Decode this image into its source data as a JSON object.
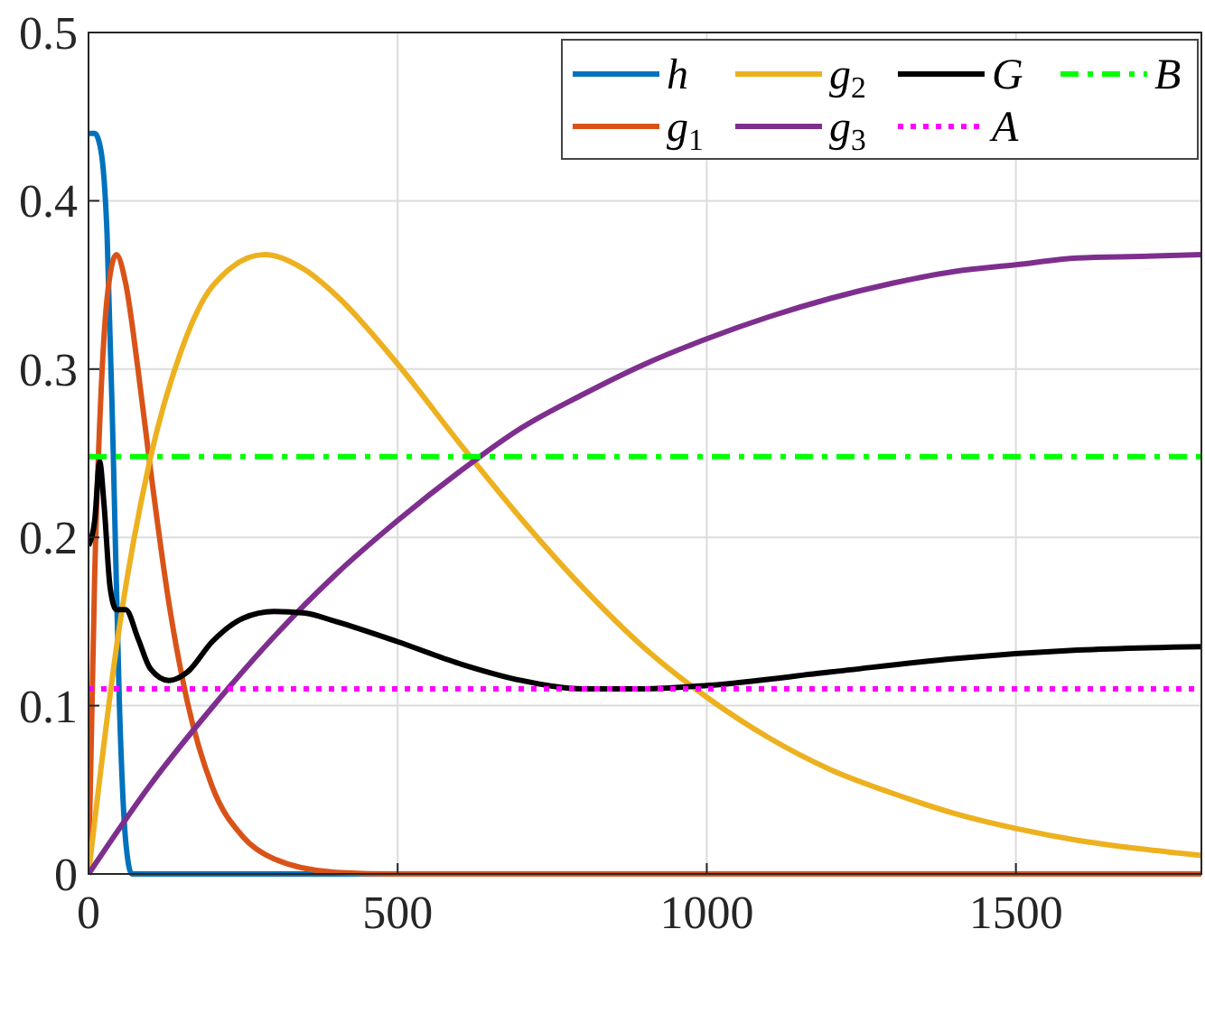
{
  "chart_data": {
    "type": "line",
    "xlim": [
      0,
      1800
    ],
    "ylim": [
      0,
      0.5
    ],
    "xticks": [
      0,
      500,
      1000,
      1500
    ],
    "yticks": [
      0,
      0.1,
      0.2,
      0.3,
      0.4,
      0.5
    ],
    "grid": true,
    "legend": "top right",
    "series": [
      {
        "name": "h",
        "color": "#0072bd",
        "x": [
          0,
          10,
          20,
          30,
          40,
          50,
          60,
          70,
          100,
          1800
        ],
        "values": [
          0.44,
          0.44,
          0.43,
          0.38,
          0.25,
          0.1,
          0.02,
          0,
          0,
          0
        ]
      },
      {
        "name": "g$_{1}$",
        "color": "#d95319",
        "x": [
          0,
          10,
          20,
          30,
          45,
          60,
          80,
          100,
          130,
          160,
          200,
          250,
          300,
          400,
          500,
          1800
        ],
        "values": [
          0,
          0.178,
          0.284,
          0.342,
          0.368,
          0.351,
          0.3,
          0.241,
          0.161,
          0.102,
          0.052,
          0.022,
          0.009,
          0.001,
          0,
          0
        ]
      },
      {
        "name": "g$_{2}$",
        "color": "#edb120",
        "x": [
          0,
          50,
          100,
          150,
          200,
          285,
          350,
          400,
          500,
          600,
          700,
          800,
          900,
          1000,
          1100,
          1200,
          1300,
          1400,
          1500,
          1600,
          1700,
          1800
        ],
        "values": [
          0,
          0.147,
          0.247,
          0.311,
          0.349,
          0.368,
          0.359,
          0.344,
          0.303,
          0.256,
          0.211,
          0.17,
          0.134,
          0.105,
          0.081,
          0.062,
          0.048,
          0.036,
          0.027,
          0.02,
          0.015,
          0.011
        ]
      },
      {
        "name": "g$_{3}$",
        "color": "#7e2f8e",
        "x": [
          0,
          100,
          200,
          300,
          400,
          500,
          600,
          700,
          800,
          900,
          1000,
          1100,
          1200,
          1300,
          1400,
          1500,
          1600,
          1700,
          1800
        ],
        "values": [
          0,
          0.053,
          0.099,
          0.141,
          0.178,
          0.21,
          0.239,
          0.265,
          0.285,
          0.303,
          0.318,
          0.331,
          0.342,
          0.351,
          0.358,
          0.362,
          0.366,
          0.367,
          0.368
        ]
      },
      {
        "name": "G",
        "color": "#000000",
        "x": [
          0,
          10,
          18,
          25,
          35,
          45,
          60,
          80,
          100,
          130,
          160,
          200,
          250,
          300,
          350,
          400,
          500,
          600,
          700,
          800,
          900,
          1000,
          1200,
          1400,
          1600,
          1800
        ],
        "values": [
          0.195,
          0.21,
          0.245,
          0.22,
          0.17,
          0.157,
          0.157,
          0.14,
          0.122,
          0.115,
          0.12,
          0.138,
          0.152,
          0.156,
          0.155,
          0.15,
          0.138,
          0.125,
          0.115,
          0.11,
          0.11,
          0.112,
          0.12,
          0.128,
          0.133,
          0.135
        ]
      },
      {
        "name": "A",
        "color": "#ff00ff",
        "line_style": "dotted",
        "x": [
          0,
          1800
        ],
        "values": [
          0.11,
          0.11
        ]
      },
      {
        "name": "B",
        "color": "#00ff00",
        "line_style": "dashdot",
        "x": [
          0,
          1800
        ],
        "values": [
          0.248,
          0.248
        ]
      }
    ]
  }
}
